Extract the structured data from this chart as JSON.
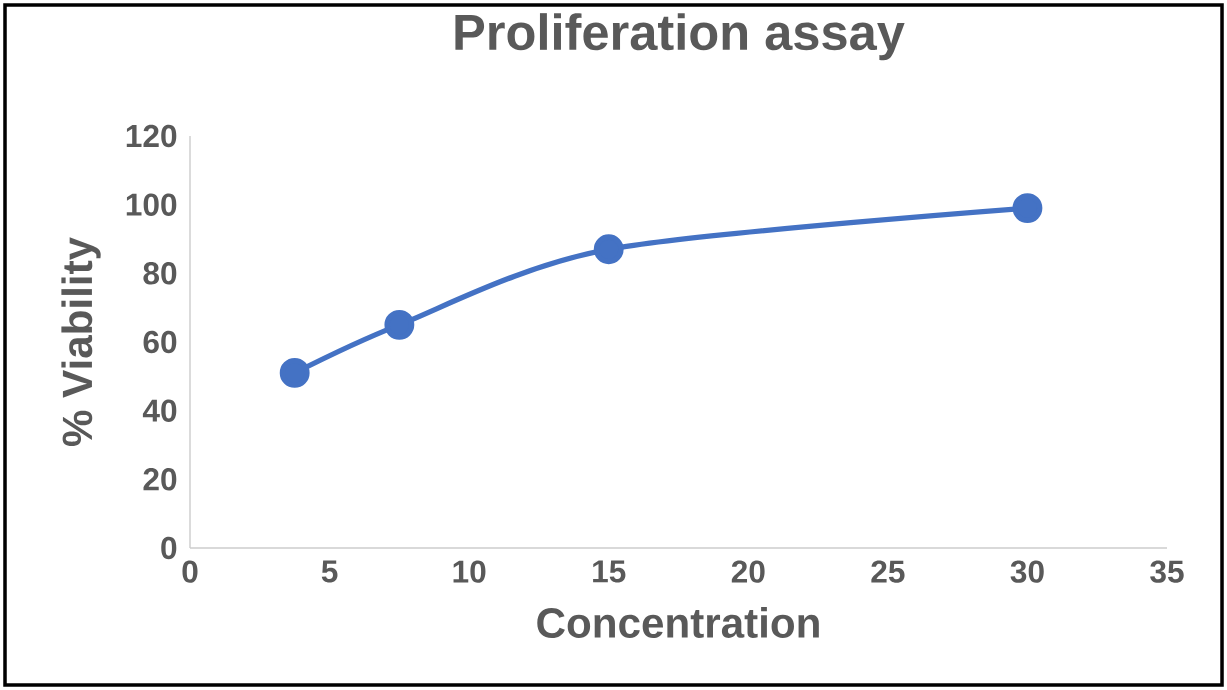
{
  "chart_data": {
    "type": "line",
    "title": "Proliferation assay",
    "xlabel": "Concentration",
    "ylabel": "% Viability",
    "x": [
      3.75,
      7.5,
      15,
      30
    ],
    "series": [
      {
        "color": "#4472c4",
        "values": [
          51,
          65,
          87,
          99
        ]
      }
    ],
    "xlim": [
      0,
      35
    ],
    "xticks": [
      0,
      5,
      10,
      15,
      20,
      25,
      30,
      35
    ],
    "ylim": [
      0,
      120
    ],
    "yticks": [
      0,
      20,
      40,
      60,
      80,
      100,
      120
    ],
    "marker": "circle",
    "line_style": "solid"
  }
}
